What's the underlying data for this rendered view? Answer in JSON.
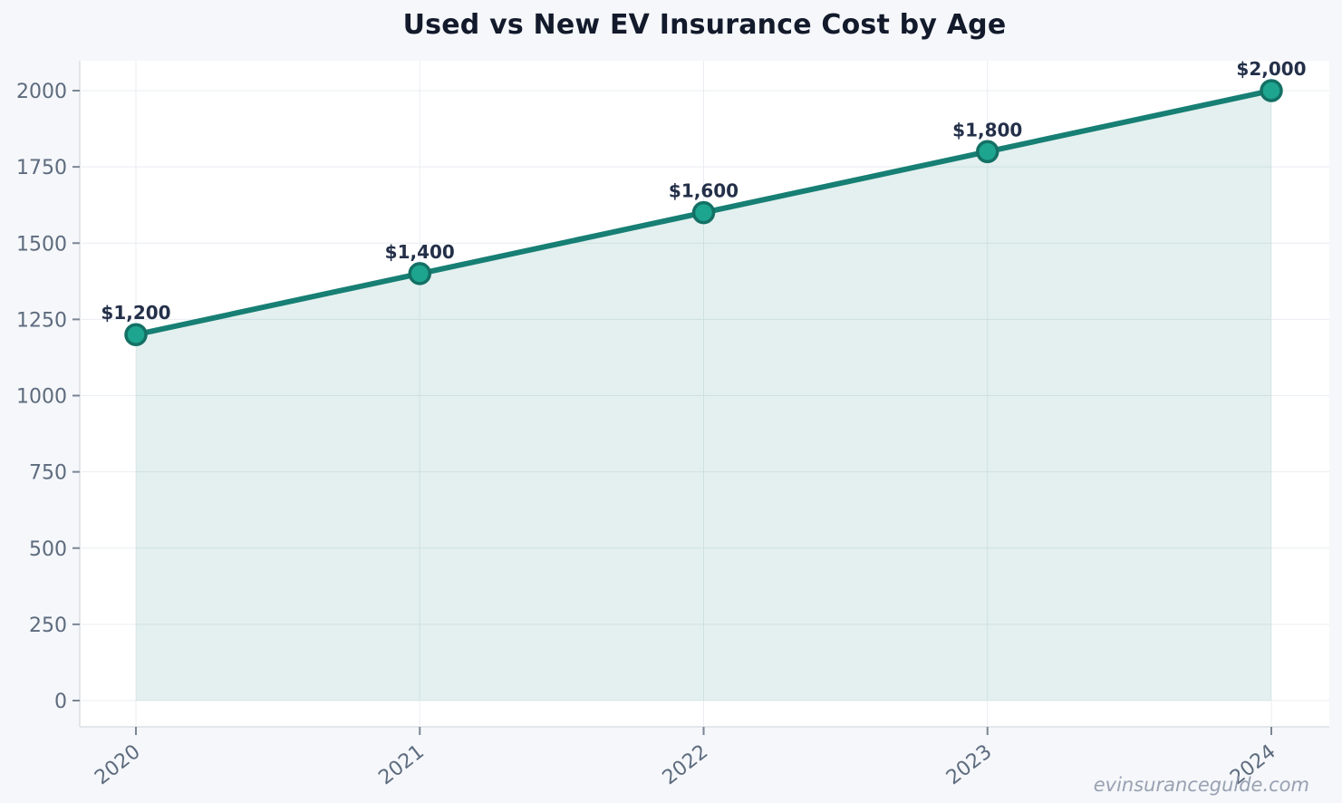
{
  "page": {
    "watermark": "evinsuranceguide.com"
  },
  "chart_data": {
    "type": "area",
    "title": "Used vs New EV Insurance Cost by Age",
    "x": [
      "2020",
      "2021",
      "2022",
      "2023",
      "2024"
    ],
    "values": [
      1200,
      1400,
      1600,
      1800,
      2000
    ],
    "point_labels": [
      "$1,200",
      "$1,400",
      "$1,600",
      "$1,800",
      "$2,000"
    ],
    "yticks": [
      0,
      250,
      500,
      750,
      1000,
      1250,
      1500,
      1750,
      2000
    ],
    "ymax": 2000,
    "ylim": [
      -85,
      2100
    ],
    "xlabel": "",
    "ylabel": "",
    "grid": true,
    "legend": "none",
    "x_tick_rotation": -38,
    "colors": {
      "page_background": "#f5f7fa",
      "plot_background": "#ffffff",
      "grid": "#e9edf1",
      "spine": "#e2e6ea",
      "tick": "#7c8694",
      "tick_label": "#5d6b7e",
      "line": "#177f74",
      "marker": "#1da58f",
      "marker_edge": "#147065",
      "fill": "rgba(23,133,123,0.12)",
      "data_label": "#243049",
      "title": "#121a2b",
      "watermark": "#99a1b2"
    }
  }
}
